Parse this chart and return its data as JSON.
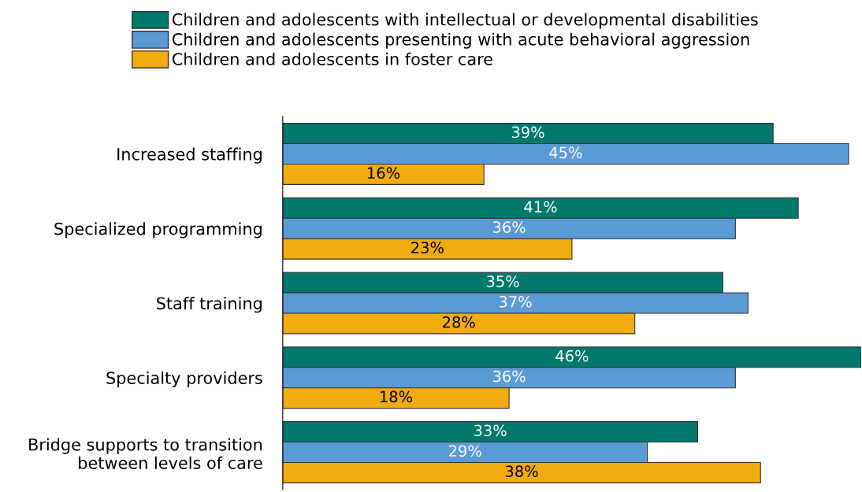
{
  "chart_data": {
    "type": "bar",
    "orientation": "horizontal",
    "legend": "top",
    "categories": [
      "Increased staffing",
      "Specialized programming",
      "Staff training",
      "Specialty providers",
      "Bridge supports to transition\nbetween levels of care"
    ],
    "series": [
      {
        "name": "Children and adolescents with intellectual or developmental disabilities",
        "color": "#00786c",
        "values": [
          39,
          41,
          35,
          46,
          33
        ],
        "value_labels": [
          "39%",
          "41%",
          "35%",
          "46%",
          "33%"
        ]
      },
      {
        "name": "Children and adolescents presenting with acute behavioral aggression",
        "color": "#5b9bd5",
        "values": [
          45,
          36,
          37,
          36,
          29
        ],
        "value_labels": [
          "45%",
          "36%",
          "37%",
          "36%",
          "29%"
        ]
      },
      {
        "name": "Children and adolescents in foster care",
        "color": "#f2ac12",
        "values": [
          16,
          23,
          28,
          18,
          38
        ],
        "value_labels": [
          "16%",
          "23%",
          "28%",
          "18%",
          "38%"
        ]
      }
    ]
  }
}
